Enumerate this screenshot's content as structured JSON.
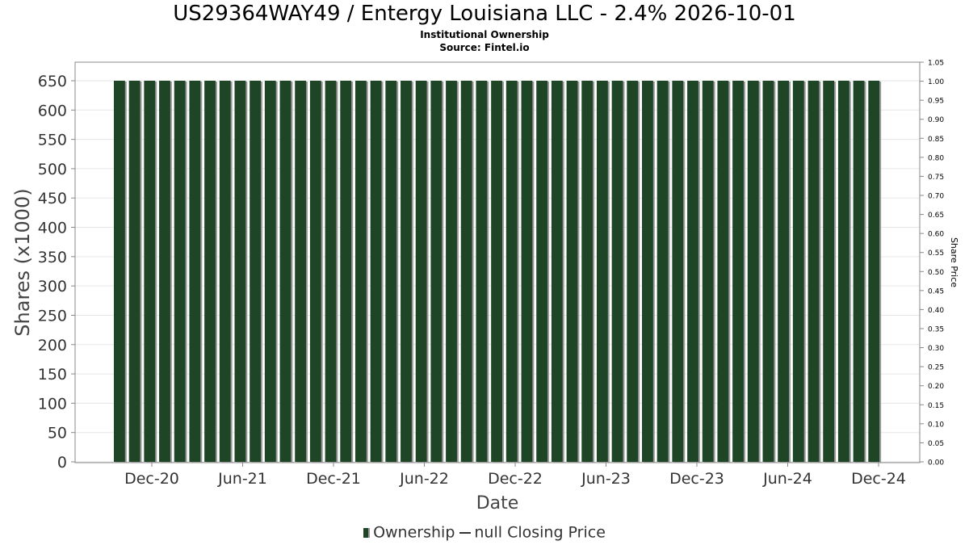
{
  "title": "US29364WAY49 / Entergy Louisiana LLC - 2.4% 2026-10-01",
  "subtitle": "Institutional Ownership",
  "source": "Source: Fintel.io",
  "legend": {
    "ownership": "Ownership",
    "price": "null Closing Price"
  },
  "colors": {
    "bar": "#1f4527",
    "bar_shadow": "#9a9a9a",
    "grid": "#e6e6e6",
    "axis": "#888888"
  },
  "chart_data": {
    "type": "bar",
    "xlabel": "Date",
    "ylabel": "Shares (x1000)",
    "ylabel_right": "Share Price",
    "ylim": [
      0,
      650
    ],
    "y_ticks": [
      "0",
      "50",
      "100",
      "150",
      "200",
      "250",
      "300",
      "350",
      "400",
      "450",
      "500",
      "550",
      "600",
      "650"
    ],
    "ylim_right": [
      0,
      1.05
    ],
    "y2_ticks": [
      "0.00",
      "0.05",
      "0.10",
      "0.15",
      "0.20",
      "0.25",
      "0.30",
      "0.35",
      "0.40",
      "0.45",
      "0.50",
      "0.55",
      "0.60",
      "0.65",
      "0.70",
      "0.75",
      "0.80",
      "0.85",
      "0.90",
      "0.95",
      "1.00",
      "1.05"
    ],
    "x_ticks": [
      "Dec-20",
      "Jun-21",
      "Dec-21",
      "Jun-22",
      "Dec-22",
      "Jun-23",
      "Dec-23",
      "Jun-24",
      "Dec-24"
    ],
    "grid": true,
    "legend_position": "bottom",
    "series": [
      {
        "name": "Ownership",
        "values": [
          650,
          650,
          650,
          650,
          650,
          650,
          650,
          650,
          650,
          650,
          650,
          650,
          650,
          650,
          650,
          650,
          650,
          650,
          650,
          650,
          650,
          650,
          650,
          650,
          650,
          650,
          650,
          650,
          650,
          650,
          650,
          650,
          650,
          650,
          650,
          650,
          650,
          650,
          650,
          650,
          650,
          650,
          650,
          650,
          650,
          650,
          650,
          650,
          650,
          650,
          650
        ]
      },
      {
        "name": "null Closing Price",
        "values": []
      }
    ]
  }
}
